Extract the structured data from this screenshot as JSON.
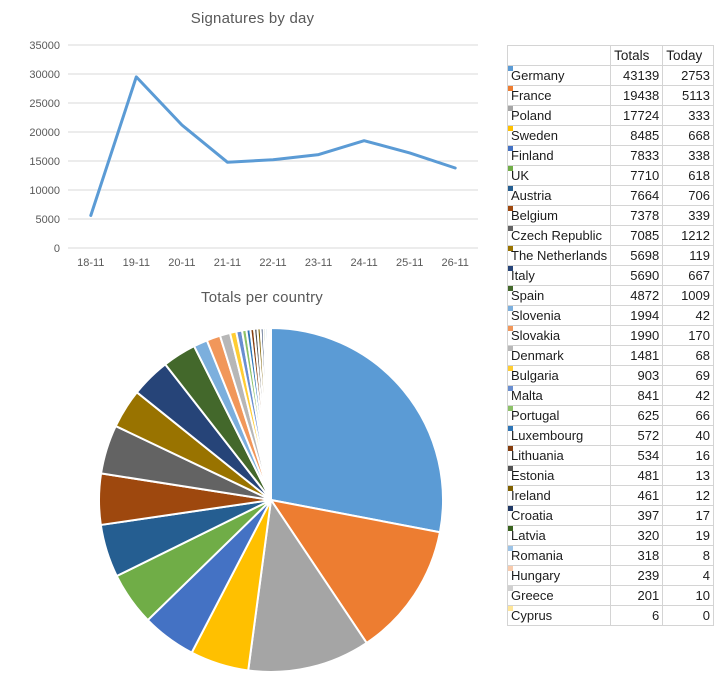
{
  "canvas": {
    "background": "#ffffff"
  },
  "chart_data": [
    {
      "type": "line",
      "title": "Signatures by day",
      "categories": [
        "18-11",
        "19-11",
        "20-11",
        "21-11",
        "22-11",
        "23-11",
        "24-11",
        "25-11",
        "26-11"
      ],
      "values": [
        5600,
        29500,
        21200,
        14800,
        15200,
        16100,
        18500,
        16400,
        13800
      ],
      "xlabel": "",
      "ylabel": "",
      "ylim": [
        0,
        35000
      ],
      "yticks": [
        0,
        5000,
        10000,
        15000,
        20000,
        25000,
        30000,
        35000
      ],
      "grid": "horizontal",
      "legend": "none",
      "line_color": "#5B9BD5",
      "grid_color": "#D9D9D9",
      "text_color": "#595959"
    },
    {
      "type": "pie",
      "title": "Totals per country",
      "labels": [
        "Germany",
        "France",
        "Poland",
        "Sweden",
        "Finland",
        "UK",
        "Austria",
        "Belgium",
        "Czech Republic",
        "The Netherlands",
        "Italy",
        "Spain",
        "Slovenia",
        "Slovakia",
        "Denmark",
        "Bulgaria",
        "Malta",
        "Portugal",
        "Luxembourg",
        "Lithuania",
        "Estonia",
        "Ireland",
        "Croatia",
        "Latvia",
        "Romania",
        "Hungary",
        "Greece",
        "Cyprus"
      ],
      "values": [
        43139,
        19438,
        17724,
        8485,
        7833,
        7710,
        7664,
        7378,
        7085,
        5698,
        5690,
        4872,
        1994,
        1990,
        1481,
        903,
        841,
        625,
        572,
        534,
        481,
        461,
        397,
        320,
        318,
        239,
        201,
        6
      ],
      "colors": [
        "#5B9BD5",
        "#ED7D31",
        "#A5A5A5",
        "#FFC000",
        "#4472C4",
        "#70AD47",
        "#255E91",
        "#9E480E",
        "#636363",
        "#997300",
        "#264478",
        "#43682B",
        "#7CAFDD",
        "#F1975A",
        "#B7B7B7",
        "#FFCD33",
        "#698ED0",
        "#8CC168",
        "#2E75B6",
        "#843C0C",
        "#525252",
        "#7F6000",
        "#203864",
        "#38621E",
        "#9DC3E6",
        "#F8CBAD",
        "#D0D0D0",
        "#FFE699"
      ],
      "start_angle": "top",
      "direction": "clockwise",
      "separator_color": "#ffffff",
      "legend": "none",
      "text_color": "#595959"
    }
  ],
  "table": {
    "headers": [
      "",
      "Totals",
      "Today"
    ],
    "rows": [
      {
        "country": "Germany",
        "total": 43139,
        "today": 2753
      },
      {
        "country": "France",
        "total": 19438,
        "today": 5113
      },
      {
        "country": "Poland",
        "total": 17724,
        "today": 333
      },
      {
        "country": "Sweden",
        "total": 8485,
        "today": 668
      },
      {
        "country": "Finland",
        "total": 7833,
        "today": 338
      },
      {
        "country": "UK",
        "total": 7710,
        "today": 618
      },
      {
        "country": "Austria",
        "total": 7664,
        "today": 706
      },
      {
        "country": "Belgium",
        "total": 7378,
        "today": 339
      },
      {
        "country": "Czech Republic",
        "total": 7085,
        "today": 1212
      },
      {
        "country": "The Netherlands",
        "total": 5698,
        "today": 119
      },
      {
        "country": "Italy",
        "total": 5690,
        "today": 667
      },
      {
        "country": "Spain",
        "total": 4872,
        "today": 1009
      },
      {
        "country": "Slovenia",
        "total": 1994,
        "today": 42
      },
      {
        "country": "Slovakia",
        "total": 1990,
        "today": 170
      },
      {
        "country": "Denmark",
        "total": 1481,
        "today": 68
      },
      {
        "country": "Bulgaria",
        "total": 903,
        "today": 69
      },
      {
        "country": "Malta",
        "total": 841,
        "today": 42
      },
      {
        "country": "Portugal",
        "total": 625,
        "today": 66
      },
      {
        "country": "Luxembourg",
        "total": 572,
        "today": 40
      },
      {
        "country": "Lithuania",
        "total": 534,
        "today": 16
      },
      {
        "country": "Estonia",
        "total": 481,
        "today": 13
      },
      {
        "country": "Ireland",
        "total": 461,
        "today": 12
      },
      {
        "country": "Croatia",
        "total": 397,
        "today": 17
      },
      {
        "country": "Latvia",
        "total": 320,
        "today": 19
      },
      {
        "country": "Romania",
        "total": 318,
        "today": 8
      },
      {
        "country": "Hungary",
        "total": 239,
        "today": 4
      },
      {
        "country": "Greece",
        "total": 201,
        "today": 10
      },
      {
        "country": "Cyprus",
        "total": 6,
        "today": 0
      }
    ]
  }
}
